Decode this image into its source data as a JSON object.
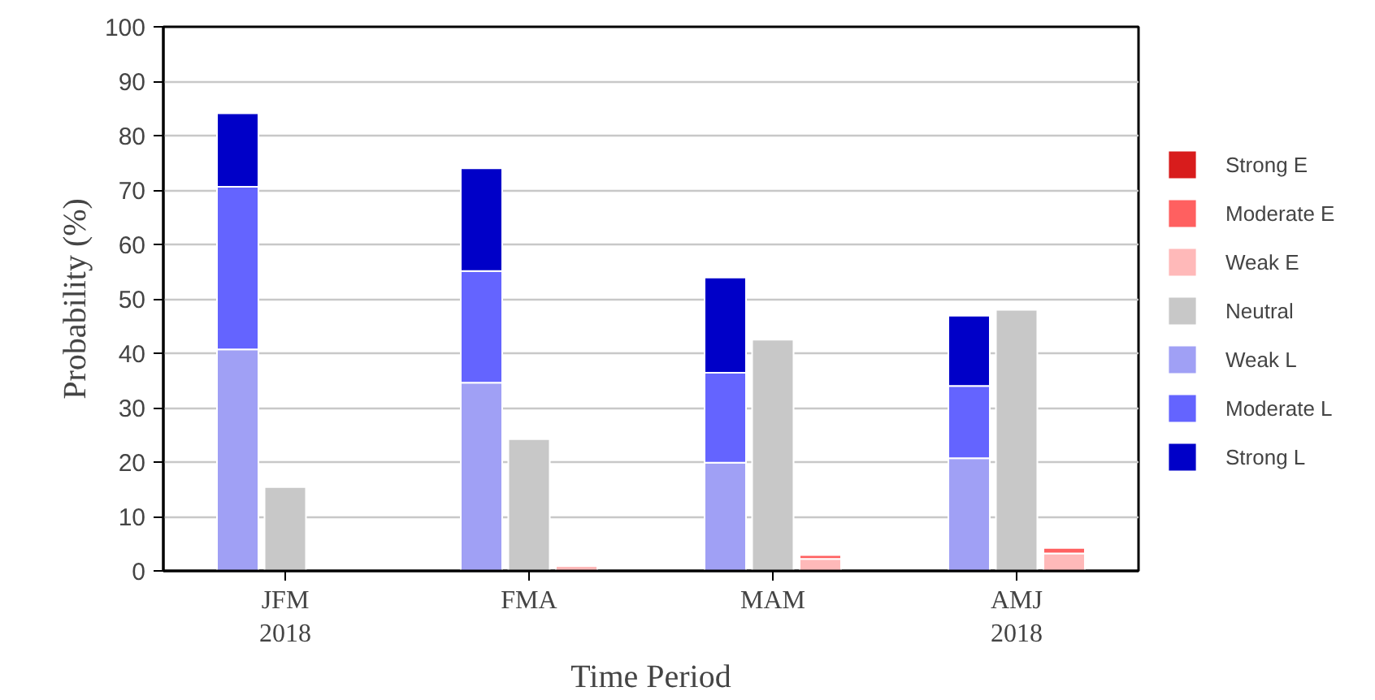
{
  "chart_data": {
    "type": "bar",
    "stacked": true,
    "xlabel": "Time Period",
    "ylabel": "Probability (%)",
    "categories": [
      null,
      "JFM\n2018",
      null,
      null,
      "FMA",
      null,
      null,
      "MAM",
      null,
      null,
      "AMJ\n2018",
      null
    ],
    "series": [
      {
        "name": "Weak L",
        "color": "#a0a0f5",
        "values": [
          40.7,
          null,
          null,
          34.6,
          null,
          null,
          19.9,
          null,
          null,
          20.7,
          null,
          null
        ]
      },
      {
        "name": "Moderate L",
        "color": "#6464ff",
        "values": [
          29.9,
          null,
          null,
          20.5,
          null,
          null,
          16.5,
          null,
          null,
          13.3,
          null,
          null
        ]
      },
      {
        "name": "Strong L",
        "color": "#0000c8",
        "values": [
          13.5,
          null,
          null,
          18.9,
          null,
          null,
          17.5,
          null,
          null,
          12.9,
          null,
          null
        ]
      },
      {
        "name": "Neutral",
        "color": "#c8c8c8",
        "values": [
          null,
          15.4,
          null,
          null,
          24.2,
          null,
          null,
          42.5,
          null,
          null,
          48.0,
          null
        ]
      },
      {
        "name": "Weak E",
        "color": "#ffb9b9",
        "values": [
          null,
          null,
          null,
          null,
          null,
          0.9,
          null,
          null,
          2.2,
          null,
          null,
          3.2
        ]
      },
      {
        "name": "Moderate E",
        "color": "#ff6060",
        "values": [
          null,
          null,
          null,
          null,
          null,
          null,
          null,
          null,
          0.7,
          null,
          null,
          1.0
        ]
      },
      {
        "name": "Strong E",
        "color": "#d81c1c",
        "values": [
          null,
          null,
          null,
          null,
          null,
          null,
          null,
          null,
          null,
          null,
          null,
          null
        ]
      }
    ],
    "ylim": [
      0,
      100
    ],
    "yticks": [
      0,
      10,
      20,
      30,
      40,
      50,
      60,
      70,
      80,
      90,
      100
    ],
    "grid": "y",
    "legend": "right"
  }
}
